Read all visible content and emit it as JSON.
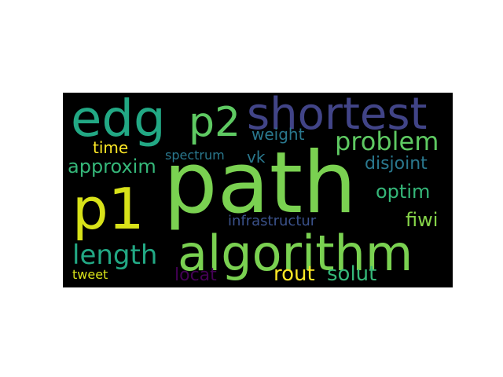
{
  "colors": {
    "page_background": "#ffffff",
    "cloud_background": "#000000"
  },
  "words": [
    {
      "text": "path",
      "color": "#7ad151"
    },
    {
      "text": "algorithm",
      "color": "#7ad151"
    },
    {
      "text": "edg",
      "color": "#22a884"
    },
    {
      "text": "p2",
      "color": "#5ec962"
    },
    {
      "text": "shortest",
      "color": "#414487"
    },
    {
      "text": "p1",
      "color": "#d8e219"
    },
    {
      "text": "problem",
      "color": "#5ec962"
    },
    {
      "text": "length",
      "color": "#22a884"
    },
    {
      "text": "approxim",
      "color": "#35b779"
    },
    {
      "text": "time",
      "color": "#fde725"
    },
    {
      "text": "weight",
      "color": "#2a788e"
    },
    {
      "text": "optim",
      "color": "#35b779"
    },
    {
      "text": "disjoint",
      "color": "#2a788e"
    },
    {
      "text": "spectrum",
      "color": "#2a788e"
    },
    {
      "text": "vk",
      "color": "#2a788e"
    },
    {
      "text": "fiwi",
      "color": "#86d549"
    },
    {
      "text": "infrastructur",
      "color": "#3b528b"
    },
    {
      "text": "rout",
      "color": "#fde725"
    },
    {
      "text": "solut",
      "color": "#35b779"
    },
    {
      "text": "locat",
      "color": "#440154"
    },
    {
      "text": "tweet",
      "color": "#d8e219"
    }
  ]
}
